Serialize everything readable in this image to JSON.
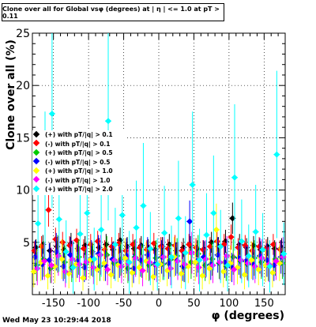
{
  "title": "Clone  over all for Global vsφ (degrees) at |  η | <= 1.0 at pT > 0.11",
  "ylabel": "Clone  over all (%)",
  "xlabel": "φ (degrees)",
  "datestamp": "Wed May 23 10:29:44 2018",
  "legend": [
    {
      "label": "(+) with pT/|q| > 0.1",
      "color": "#000000"
    },
    {
      "label": "(-) with pT/|q| > 0.1",
      "color": "#ff0000"
    },
    {
      "label": "(+) with pT/|q| > 0.5",
      "color": "#00cc00"
    },
    {
      "label": "(-) with pT/|q| > 0.5",
      "color": "#0000ff"
    },
    {
      "label": "(+) with pT/|q| > 1.0",
      "color": "#ffff00"
    },
    {
      "label": "(-) with pT/|q| > 1.0",
      "color": "#ff00ff"
    },
    {
      "label": "(+) with pT/|q| > 2.0",
      "color": "#00ffff"
    }
  ],
  "chart_data": {
    "type": "scatter",
    "title": "Clone  over all for Global vsφ (degrees) at |  η | <= 1.0 at pT > 0.11",
    "xlabel": "φ (degrees)",
    "ylabel": "Clone  over all (%)",
    "xlim": [
      -180,
      180
    ],
    "ylim": [
      0,
      25
    ],
    "xticks": [
      -150,
      -100,
      -50,
      0,
      50,
      100,
      150
    ],
    "yticks": [
      5,
      10,
      15,
      20,
      25
    ],
    "grid": true,
    "legend_position": "left-middle",
    "series": [
      {
        "name": "(+) with pT/|q| > 0.1",
        "color": "#000000",
        "x": [
          -175,
          -165,
          -155,
          -145,
          -135,
          -125,
          -115,
          -105,
          -95,
          -85,
          -75,
          -65,
          -55,
          -45,
          -35,
          -25,
          -15,
          -5,
          5,
          15,
          25,
          35,
          45,
          55,
          65,
          75,
          85,
          95,
          105,
          115,
          125,
          135,
          145,
          155,
          165,
          175
        ],
        "y": [
          4.5,
          4.8,
          4.2,
          4.6,
          4.3,
          4.9,
          4.4,
          4.7,
          4.1,
          4.5,
          4.8,
          4.3,
          5.2,
          4.6,
          4.4,
          4.7,
          4.5,
          4.3,
          4.6,
          4.8,
          4.2,
          4.5,
          4.7,
          4.4,
          4.3,
          5.0,
          4.6,
          5.1,
          7.3,
          4.8,
          4.5,
          4.7,
          4.3,
          4.6,
          4.4,
          4.5
        ],
        "err": [
          0.8,
          0.9,
          0.8,
          0.9,
          0.8,
          1.0,
          0.8,
          0.9,
          0.8,
          0.9,
          1.0,
          0.8,
          1.2,
          0.9,
          0.8,
          0.9,
          0.8,
          0.8,
          0.9,
          1.0,
          0.8,
          0.9,
          0.9,
          0.8,
          0.8,
          1.0,
          0.9,
          1.1,
          1.5,
          1.0,
          0.9,
          0.9,
          0.8,
          0.9,
          0.8,
          0.9
        ]
      },
      {
        "name": "(-) with pT/|q| > 0.1",
        "color": "#ff0000",
        "x": [
          -177,
          -167,
          -157,
          -147,
          -137,
          -127,
          -117,
          -107,
          -97,
          -87,
          -77,
          -67,
          -57,
          -47,
          -37,
          -27,
          -17,
          -7,
          3,
          13,
          23,
          33,
          43,
          53,
          63,
          73,
          83,
          93,
          103,
          113,
          123,
          133,
          143,
          153,
          163,
          173
        ],
        "y": [
          4.2,
          4.6,
          8.1,
          5.3,
          5.0,
          4.7,
          5.2,
          4.4,
          4.8,
          5.1,
          4.3,
          4.6,
          4.9,
          4.2,
          4.8,
          4.5,
          4.3,
          4.9,
          4.6,
          4.4,
          4.7,
          4.2,
          4.8,
          4.5,
          4.3,
          4.6,
          5.1,
          4.8,
          5.5,
          4.5,
          4.7,
          4.2,
          4.6,
          4.4,
          4.8,
          4.3
        ],
        "err": [
          0.9,
          1.0,
          1.6,
          1.1,
          1.0,
          0.9,
          1.1,
          0.9,
          1.0,
          1.0,
          0.9,
          0.9,
          1.0,
          0.8,
          1.0,
          0.9,
          0.9,
          1.0,
          0.9,
          0.9,
          1.0,
          0.8,
          1.0,
          0.9,
          0.9,
          0.9,
          1.0,
          1.0,
          1.2,
          0.9,
          1.0,
          0.8,
          0.9,
          0.9,
          1.0,
          0.9
        ]
      },
      {
        "name": "(+) with pT/|q| > 0.5",
        "color": "#00cc00",
        "x": [
          -174,
          -164,
          -154,
          -144,
          -134,
          -124,
          -114,
          -104,
          -94,
          -84,
          -74,
          -64,
          -54,
          -44,
          -34,
          -24,
          -14,
          -4,
          6,
          16,
          26,
          36,
          46,
          56,
          66,
          76,
          86,
          96,
          106,
          116,
          126,
          136,
          146,
          156,
          166,
          176
        ],
        "y": [
          2.8,
          3.4,
          2.5,
          3.9,
          3.1,
          2.6,
          3.6,
          2.9,
          3.3,
          2.7,
          3.8,
          3.0,
          3.4,
          2.5,
          3.6,
          3.2,
          2.8,
          3.5,
          2.9,
          3.3,
          3.7,
          2.6,
          3.1,
          3.9,
          2.8,
          3.4,
          3.0,
          2.7,
          3.6,
          3.2,
          2.9,
          3.5,
          3.1,
          2.8,
          3.4,
          3.0
        ],
        "err": [
          1.5,
          1.7,
          1.4,
          1.8,
          1.6,
          1.4,
          1.7,
          1.5,
          1.6,
          1.4,
          1.8,
          1.5,
          1.6,
          1.4,
          1.7,
          1.6,
          1.5,
          1.7,
          1.5,
          1.6,
          1.7,
          1.4,
          1.6,
          1.8,
          1.5,
          1.6,
          1.5,
          1.4,
          1.7,
          1.6,
          1.5,
          1.7,
          1.6,
          1.5,
          1.6,
          1.5
        ]
      },
      {
        "name": "(-) with pT/|q| > 0.5",
        "color": "#0000ff",
        "x": [
          -176,
          -166,
          -156,
          -146,
          -136,
          -126,
          -116,
          -106,
          -96,
          -86,
          -76,
          -66,
          -56,
          -46,
          -36,
          -26,
          -16,
          -6,
          4,
          14,
          24,
          34,
          44,
          54,
          64,
          74,
          84,
          94,
          104,
          114,
          124,
          134,
          144,
          154,
          164,
          174
        ],
        "y": [
          3.6,
          2.9,
          3.3,
          4.1,
          2.7,
          3.8,
          3.2,
          2.6,
          3.5,
          3.9,
          2.8,
          3.4,
          3.1,
          3.7,
          2.5,
          3.3,
          3.8,
          2.9,
          3.6,
          3.0,
          3.4,
          2.7,
          7.0,
          3.2,
          3.6,
          2.9,
          3.8,
          3.1,
          2.6,
          3.5,
          3.2,
          2.9,
          3.7,
          3.3,
          2.8,
          3.6
        ],
        "err": [
          1.6,
          1.5,
          1.6,
          1.8,
          1.4,
          1.7,
          1.6,
          1.4,
          1.7,
          1.8,
          1.5,
          1.6,
          1.5,
          1.7,
          1.4,
          1.6,
          1.7,
          1.5,
          1.6,
          1.5,
          1.6,
          1.4,
          2.0,
          1.5,
          1.6,
          1.5,
          1.7,
          1.5,
          1.4,
          1.6,
          1.5,
          1.5,
          1.7,
          1.6,
          1.5,
          1.6
        ]
      },
      {
        "name": "(+) with pT/|q| > 1.0",
        "color": "#ffff00",
        "x": [
          -178,
          -168,
          -158,
          -148,
          -138,
          -128,
          -118,
          -108,
          -98,
          -88,
          -78,
          -68,
          -58,
          -48,
          -38,
          -28,
          -18,
          -8,
          2,
          12,
          22,
          32,
          42,
          52,
          62,
          72,
          82,
          92,
          102,
          112,
          122,
          132,
          142,
          152,
          162,
          172
        ],
        "y": [
          2.2,
          3.1,
          1.8,
          2.7,
          3.4,
          2.0,
          2.9,
          1.6,
          3.3,
          2.4,
          3.0,
          1.9,
          2.8,
          3.5,
          2.1,
          2.6,
          3.2,
          1.7,
          2.9,
          2.3,
          3.6,
          2.0,
          2.7,
          3.1,
          1.8,
          2.5,
          6.2,
          2.2,
          3.0,
          2.6,
          1.9,
          3.3,
          2.4,
          2.8,
          2.1,
          3.0
        ],
        "err": [
          1.5,
          1.8,
          1.3,
          1.6,
          1.9,
          1.4,
          1.7,
          1.2,
          1.8,
          1.5,
          1.7,
          1.3,
          1.6,
          1.9,
          1.4,
          1.6,
          1.8,
          1.3,
          1.7,
          1.5,
          1.9,
          1.4,
          1.6,
          1.8,
          1.3,
          1.5,
          2.5,
          1.5,
          1.7,
          1.6,
          1.4,
          1.8,
          1.5,
          1.6,
          1.4,
          1.7
        ]
      },
      {
        "name": "(-) with pT/|q| > 1.0",
        "color": "#ff00ff",
        "x": [
          -173,
          -163,
          -153,
          -143,
          -133,
          -123,
          -113,
          -103,
          -93,
          -83,
          -73,
          -63,
          -53,
          -43,
          -33,
          -23,
          -13,
          -3,
          7,
          17,
          27,
          37,
          47,
          57,
          67,
          77,
          87,
          97,
          107,
          117,
          127,
          137,
          147,
          157,
          167,
          177
        ],
        "y": [
          2.5,
          3.2,
          2.8,
          3.7,
          2.2,
          3.4,
          2.9,
          3.1,
          2.6,
          3.8,
          2.4,
          3.3,
          2.7,
          3.0,
          3.5,
          2.3,
          3.1,
          2.8,
          3.6,
          2.5,
          3.2,
          2.9,
          4.0,
          2.6,
          3.4,
          2.8,
          3.1,
          3.7,
          2.4,
          3.3,
          3.0,
          2.7,
          3.5,
          2.9,
          3.2,
          3.6
        ],
        "err": [
          1.6,
          1.8,
          1.7,
          1.9,
          1.5,
          1.8,
          1.7,
          1.7,
          1.6,
          1.9,
          1.5,
          1.8,
          1.6,
          1.7,
          1.8,
          1.5,
          1.7,
          1.6,
          1.9,
          1.6,
          1.8,
          1.7,
          2.0,
          1.6,
          1.8,
          1.7,
          1.7,
          1.9,
          1.5,
          1.8,
          1.7,
          1.6,
          1.8,
          1.7,
          1.8,
          1.9
        ]
      },
      {
        "name": "(+) with pT/|q| > 2.0",
        "color": "#00ffff",
        "x": [
          -172,
          -162,
          -152,
          -142,
          -132,
          -122,
          -112,
          -102,
          -92,
          -82,
          -72,
          -62,
          -52,
          -42,
          -32,
          -22,
          -12,
          -2,
          8,
          18,
          28,
          38,
          48,
          58,
          68,
          78,
          88,
          98,
          108,
          118,
          128,
          138,
          148,
          158,
          168,
          178
        ],
        "y": [
          6.8,
          10.5,
          17.3,
          7.2,
          4.1,
          2.6,
          5.8,
          7.8,
          3.4,
          6.2,
          16.6,
          4.8,
          7.6,
          3.1,
          6.4,
          8.5,
          4.4,
          2.9,
          5.9,
          3.6,
          7.3,
          4.0,
          10.5,
          3.3,
          5.7,
          7.8,
          4.6,
          2.8,
          11.2,
          5.1,
          3.7,
          6.0,
          4.3,
          2.7,
          13.4,
          3.9
        ],
        "err": [
          4.5,
          7.0,
          9.0,
          5.0,
          3.0,
          2.5,
          4.0,
          5.5,
          3.0,
          4.5,
          9.5,
          3.5,
          5.5,
          3.0,
          4.5,
          6.0,
          3.5,
          2.5,
          4.5,
          3.0,
          5.5,
          3.5,
          7.0,
          3.0,
          4.0,
          5.5,
          3.5,
          2.5,
          7.0,
          4.0,
          3.0,
          4.5,
          3.5,
          2.5,
          8.0,
          3.0
        ]
      }
    ]
  }
}
